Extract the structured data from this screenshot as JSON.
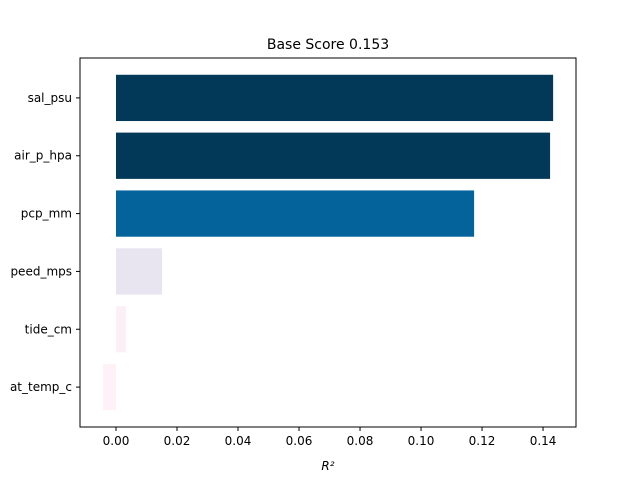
{
  "chart_data": {
    "type": "barh",
    "title": "Base Score 0.153",
    "x_label": "R²",
    "categories": [
      "sal_psu",
      "air_p_hpa",
      "pcp_mm",
      "peed_mps",
      "tide_cm",
      "at_temp_c"
    ],
    "values": [
      0.1433,
      0.1423,
      0.1174,
      0.0151,
      0.0033,
      -0.0043
    ],
    "colors": [
      "#023858",
      "#023858",
      "#04639b",
      "#e8e4f0",
      "#fcf0f7",
      "#fff1f8"
    ],
    "xlim": [
      -0.0118,
      0.1508
    ],
    "xticks": [
      {
        "value": 0,
        "label": "0.00"
      },
      {
        "value": 0.02,
        "label": "0.02"
      },
      {
        "value": 0.04,
        "label": "0.04"
      },
      {
        "value": 0.06,
        "label": "0.06"
      },
      {
        "value": 0.08,
        "label": "0.08"
      },
      {
        "value": 0.1,
        "label": "0.10"
      },
      {
        "value": 0.12,
        "label": "0.12"
      },
      {
        "value": 0.14,
        "label": "0.14"
      }
    ]
  }
}
